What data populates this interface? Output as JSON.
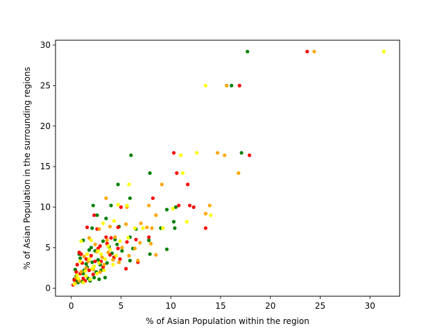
{
  "chart_data": {
    "type": "scatter",
    "title": "",
    "xlabel": "% of Asian Population within the region",
    "ylabel": "% of Asian Population in the surrounding regions",
    "xlim": [
      -1.58,
      32.98
    ],
    "ylim": [
      -1.0,
      30.6
    ],
    "x_ticks": [
      0,
      5,
      10,
      15,
      20,
      25,
      30
    ],
    "y_ticks": [
      0,
      5,
      10,
      15,
      20,
      25,
      30
    ],
    "grid": false,
    "legend": "none",
    "series": [
      {
        "color": "#008000",
        "points": [
          [
            17.7,
            29.2
          ],
          [
            16.1,
            25.0
          ],
          [
            17.1,
            16.7
          ],
          [
            6.0,
            16.4
          ],
          [
            7.9,
            14.2
          ],
          [
            4.7,
            12.8
          ],
          [
            5.9,
            11.1
          ],
          [
            2.2,
            10.2
          ],
          [
            4.0,
            10.2
          ],
          [
            10.5,
            10.0
          ],
          [
            9.6,
            9.7
          ],
          [
            2.6,
            9.0
          ],
          [
            3.5,
            8.6
          ],
          [
            10.3,
            8.2
          ],
          [
            4.8,
            7.6
          ],
          [
            2.1,
            7.4
          ],
          [
            9.0,
            7.4
          ],
          [
            10.4,
            7.4
          ],
          [
            6.5,
            7.3
          ],
          [
            5.9,
            6.3
          ],
          [
            7.8,
            5.9
          ],
          [
            3.2,
            5.8
          ],
          [
            1.2,
            5.9
          ],
          [
            9.6,
            4.8
          ],
          [
            4.6,
            5.4
          ],
          [
            6.2,
            4.9
          ],
          [
            7.9,
            4.2
          ],
          [
            5.9,
            3.4
          ],
          [
            1.8,
            4.7
          ],
          [
            0.8,
            4.2
          ],
          [
            2.7,
            3.5
          ],
          [
            1.5,
            3.0
          ],
          [
            3.0,
            2.2
          ],
          [
            2.3,
            1.3
          ],
          [
            1.2,
            1.8
          ],
          [
            0.4,
            2.3
          ],
          [
            1.9,
            0.9
          ],
          [
            0.7,
            0.7
          ],
          [
            3.4,
            1.3
          ],
          [
            2.8,
            1.1
          ],
          [
            0.3,
            1.1
          ],
          [
            1.6,
            2.6
          ],
          [
            2.1,
            3.2
          ],
          [
            0.9,
            3.7
          ],
          [
            4.1,
            4.3
          ],
          [
            3.6,
            3.1
          ],
          [
            2.4,
            4.6
          ],
          [
            1.3,
            2.2
          ],
          [
            0.5,
            1.5
          ],
          [
            2.5,
            2.0
          ],
          [
            1.7,
            1.2
          ],
          [
            3.8,
            5.1
          ],
          [
            5.1,
            4.6
          ],
          [
            2.9,
            2.9
          ],
          [
            1.1,
            0.8
          ],
          [
            2.0,
            5.0
          ],
          [
            4.4,
            6.0
          ],
          [
            0.6,
            0.9
          ]
        ]
      },
      {
        "color": "#ff0000",
        "points": [
          [
            23.7,
            29.2
          ],
          [
            16.9,
            25.0
          ],
          [
            17.9,
            16.4
          ],
          [
            10.3,
            16.7
          ],
          [
            10.6,
            14.2
          ],
          [
            11.7,
            12.8
          ],
          [
            8.2,
            11.1
          ],
          [
            11.9,
            10.2
          ],
          [
            12.3,
            10.0
          ],
          [
            10.8,
            10.2
          ],
          [
            5.0,
            10.0
          ],
          [
            13.5,
            7.4
          ],
          [
            2.3,
            9.0
          ],
          [
            4.7,
            7.5
          ],
          [
            1.6,
            7.5
          ],
          [
            2.6,
            7.3
          ],
          [
            4.0,
            6.2
          ],
          [
            6.5,
            6.0
          ],
          [
            7.8,
            6.3
          ],
          [
            4.7,
            4.9
          ],
          [
            5.6,
            5.7
          ],
          [
            3.6,
            5.5
          ],
          [
            0.8,
            4.4
          ],
          [
            1.0,
            4.2
          ],
          [
            5.5,
            2.4
          ],
          [
            6.7,
            3.2
          ],
          [
            3.2,
            2.6
          ],
          [
            2.4,
            3.3
          ],
          [
            1.5,
            3.6
          ],
          [
            0.6,
            2.9
          ],
          [
            1.2,
            1.2
          ],
          [
            0.3,
            1.0
          ],
          [
            0.2,
            0.4
          ],
          [
            2.0,
            4.0
          ],
          [
            2.7,
            4.9
          ],
          [
            3.9,
            4.1
          ],
          [
            1.8,
            2.2
          ],
          [
            0.9,
            1.8
          ],
          [
            4.3,
            3.8
          ],
          [
            3.0,
            3.3
          ],
          [
            1.4,
            0.9
          ],
          [
            2.2,
            1.7
          ],
          [
            0.5,
            2.0
          ],
          [
            3.5,
            6.3
          ],
          [
            2.9,
            5.2
          ],
          [
            1.1,
            3.1
          ],
          [
            4.9,
            3.6
          ]
        ]
      },
      {
        "color": "#ffa500",
        "points": [
          [
            24.4,
            29.2
          ],
          [
            15.6,
            25.0
          ],
          [
            14.7,
            16.7
          ],
          [
            15.4,
            16.4
          ],
          [
            16.8,
            14.2
          ],
          [
            9.1,
            12.8
          ],
          [
            3.5,
            11.1
          ],
          [
            7.8,
            10.2
          ],
          [
            13.9,
            10.2
          ],
          [
            5.6,
            10.0
          ],
          [
            13.5,
            9.2
          ],
          [
            8.5,
            9.0
          ],
          [
            7.0,
            8.0
          ],
          [
            5.5,
            7.9
          ],
          [
            3.9,
            7.6
          ],
          [
            8.1,
            7.4
          ],
          [
            9.2,
            7.4
          ],
          [
            7.6,
            7.5
          ],
          [
            2.8,
            7.3
          ],
          [
            1.8,
            6.2
          ],
          [
            4.4,
            6.3
          ],
          [
            6.9,
            5.6
          ],
          [
            8.0,
            5.5
          ],
          [
            6.4,
            4.9
          ],
          [
            5.1,
            5.0
          ],
          [
            3.7,
            4.4
          ],
          [
            2.6,
            4.5
          ],
          [
            1.3,
            3.9
          ],
          [
            4.2,
            3.5
          ],
          [
            6.7,
            3.4
          ],
          [
            8.5,
            4.1
          ],
          [
            2.2,
            2.3
          ],
          [
            1.0,
            2.0
          ],
          [
            0.5,
            1.3
          ],
          [
            3.3,
            2.9
          ],
          [
            1.7,
            3.3
          ],
          [
            0.8,
            0.9
          ],
          [
            2.9,
            2.0
          ],
          [
            4.8,
            3.2
          ],
          [
            3.1,
            3.8
          ],
          [
            1.5,
            2.5
          ],
          [
            0.4,
            0.6
          ],
          [
            5.8,
            4.0
          ],
          [
            2.4,
            5.4
          ],
          [
            3.6,
            5.9
          ]
        ]
      },
      {
        "color": "#ffff00",
        "points": [
          [
            31.4,
            29.2
          ],
          [
            13.5,
            25.0
          ],
          [
            12.6,
            16.7
          ],
          [
            11.0,
            16.4
          ],
          [
            11.2,
            14.2
          ],
          [
            5.8,
            12.8
          ],
          [
            5.6,
            10.2
          ],
          [
            4.7,
            10.3
          ],
          [
            10.2,
            9.8
          ],
          [
            14.0,
            9.0
          ],
          [
            11.6,
            8.2
          ],
          [
            9.2,
            7.4
          ],
          [
            7.2,
            7.4
          ],
          [
            6.4,
            7.4
          ],
          [
            4.3,
            8.3
          ],
          [
            3.2,
            8.0
          ],
          [
            1.0,
            5.8
          ],
          [
            2.0,
            5.9
          ],
          [
            3.7,
            5.2
          ],
          [
            4.9,
            5.8
          ],
          [
            5.7,
            6.2
          ],
          [
            2.7,
            4.6
          ],
          [
            1.6,
            4.2
          ],
          [
            0.9,
            3.3
          ],
          [
            2.3,
            2.7
          ],
          [
            3.4,
            3.6
          ],
          [
            4.2,
            2.9
          ],
          [
            1.4,
            2.1
          ],
          [
            0.6,
            1.6
          ],
          [
            1.9,
            1.1
          ],
          [
            2.6,
            1.8
          ],
          [
            3.0,
            4.2
          ],
          [
            1.2,
            0.7
          ],
          [
            2.8,
            3.1
          ],
          [
            1.8,
            3.6
          ],
          [
            0.7,
            1.2
          ],
          [
            3.9,
            4.8
          ],
          [
            4.5,
            4.0
          ],
          [
            2.1,
            2.4
          ],
          [
            1.5,
            1.5
          ],
          [
            0.3,
            0.5
          ],
          [
            3.3,
            2.2
          ]
        ]
      }
    ]
  }
}
